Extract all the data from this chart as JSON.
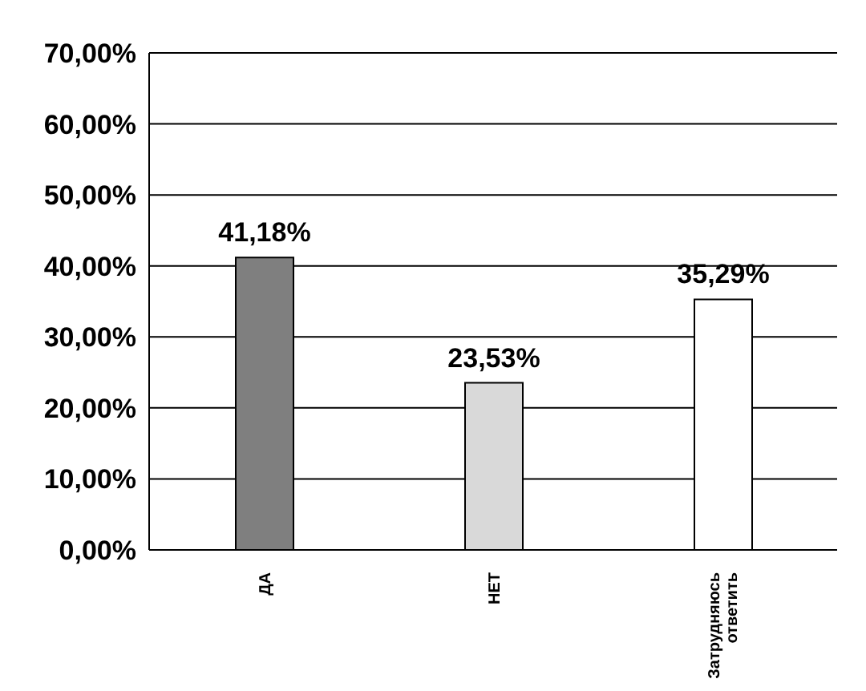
{
  "chart_data": {
    "type": "bar",
    "categories": [
      "ДА",
      "НЕТ",
      "Затрудняюсь ответить"
    ],
    "values": [
      41.18,
      23.53,
      35.29
    ],
    "colors": [
      "#7f7f7f",
      "#d9d9d9",
      "#ffffff"
    ],
    "value_labels": [
      "41,18%",
      "23,53%",
      "35,29%"
    ],
    "ylim": [
      0,
      70
    ],
    "yticks": [
      {
        "value": 0,
        "label": "0,00%"
      },
      {
        "value": 10,
        "label": "10,00%"
      },
      {
        "value": 20,
        "label": "20,00%"
      },
      {
        "value": 30,
        "label": "30,00%"
      },
      {
        "value": 40,
        "label": "40,00%"
      },
      {
        "value": 50,
        "label": "50,00%"
      },
      {
        "value": 60,
        "label": "60,00%"
      },
      {
        "value": 70,
        "label": "70,00%"
      }
    ],
    "grid": "y"
  }
}
